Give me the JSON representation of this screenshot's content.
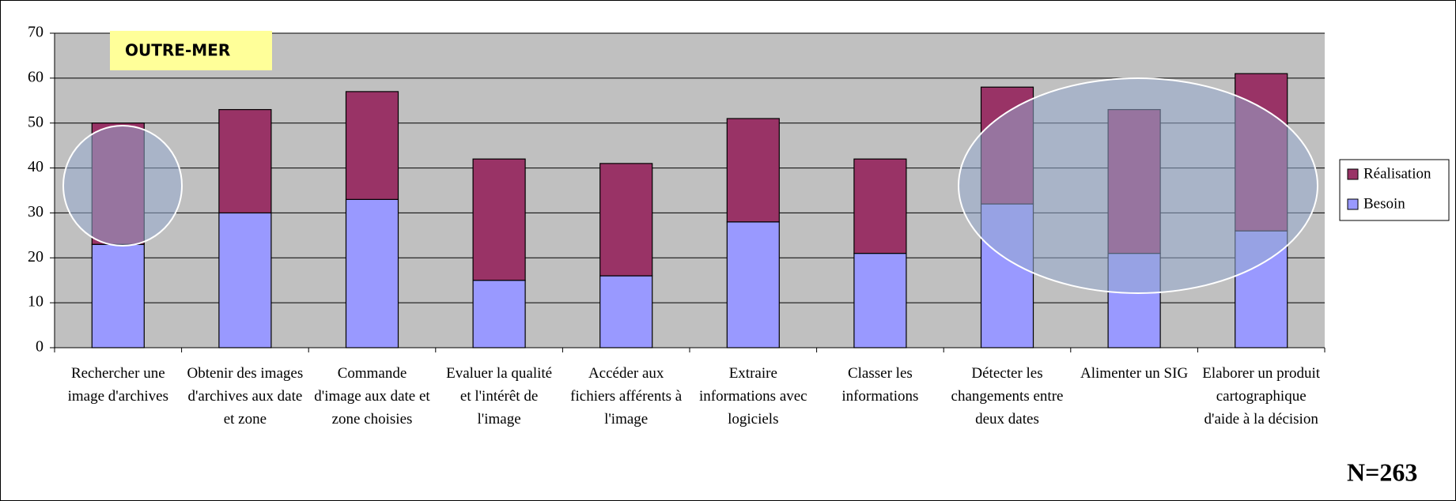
{
  "chart_data": {
    "type": "stacked_bar",
    "categories": [
      "Rechercher une image d'archives",
      "Obtenir des images d'archives aux date et zone",
      "Commande d'image aux date et zone choisies",
      "Evaluer la qualité et l'intérêt de l'image",
      "Accéder aux fichiers afférents à l'image",
      "Extraire informations avec logiciels",
      "Classer les informations",
      "Détecter les changements entre deux dates",
      "Alimenter un SIG",
      "Elaborer un produit cartographique d'aide à la décision"
    ],
    "series": [
      {
        "name": "Besoin",
        "color": "#9999ff",
        "values": [
          23,
          30,
          33,
          15,
          16,
          28,
          21,
          32,
          21,
          26
        ]
      },
      {
        "name": "Réalisation",
        "color": "#993366",
        "values": [
          27,
          23,
          24,
          27,
          25,
          23,
          21,
          26,
          32,
          35
        ]
      }
    ],
    "ylim": [
      0,
      70
    ],
    "yticks": [
      0,
      10,
      20,
      30,
      40,
      50,
      60,
      70
    ],
    "grid": true,
    "legend": "right",
    "annotations": [
      "OUTRE-MER",
      "N=263"
    ]
  }
}
